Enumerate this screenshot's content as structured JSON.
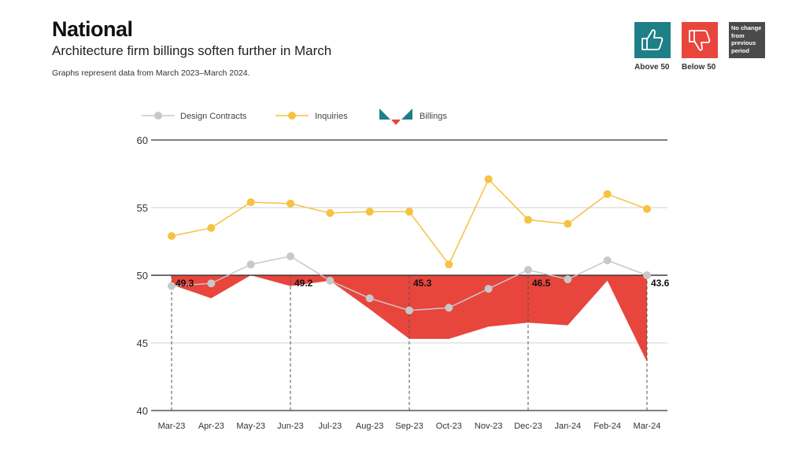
{
  "header": {
    "title": "National",
    "subtitle": "Architecture firm billings soften further in March",
    "note": "Graphs represent data from March 2023–March 2024."
  },
  "key": {
    "above": {
      "label": "Above 50",
      "icon": "thumbs-up-icon",
      "color": "#1f7f86"
    },
    "below": {
      "label": "Below 50",
      "icon": "thumbs-down-icon",
      "color": "#e8453c"
    },
    "nochange": {
      "label": "No change from previous period",
      "color": "#4a4a4a"
    }
  },
  "chart_data": {
    "type": "line",
    "categories": [
      "Mar-23",
      "Apr-23",
      "May-23",
      "Jun-23",
      "Jul-23",
      "Aug-23",
      "Sep-23",
      "Oct-23",
      "Nov-23",
      "Dec-23",
      "Jan-24",
      "Feb-24",
      "Mar-24"
    ],
    "ylim": [
      40,
      60
    ],
    "yticks": [
      40,
      45,
      50,
      55,
      60
    ],
    "baseline": 50,
    "grid": true,
    "legend_placement": "top",
    "series": [
      {
        "name": "Design Contracts",
        "color": "#c8c8c8",
        "values": [
          49.2,
          49.4,
          50.8,
          51.4,
          49.6,
          48.3,
          47.4,
          47.6,
          49.0,
          50.4,
          49.7,
          51.1,
          50.0
        ]
      },
      {
        "name": "Inquiries",
        "color": "#f5c242",
        "values": [
          52.9,
          53.5,
          55.4,
          55.3,
          54.6,
          54.7,
          54.7,
          50.8,
          57.1,
          54.1,
          53.8,
          56.0,
          54.9
        ]
      },
      {
        "name": "Billings",
        "color": "#e8453c",
        "type": "area-from-50",
        "values": [
          49.3,
          48.3,
          50.0,
          49.2,
          49.6,
          47.5,
          45.3,
          45.3,
          46.2,
          46.5,
          46.3,
          49.6,
          43.6
        ]
      }
    ],
    "labels": [
      {
        "category": "Mar-23",
        "text": "49.3"
      },
      {
        "category": "Jun-23",
        "text": "49.2"
      },
      {
        "category": "Sep-23",
        "text": "45.3"
      },
      {
        "category": "Dec-23",
        "text": "46.5"
      },
      {
        "category": "Mar-24",
        "text": "43.6"
      }
    ]
  }
}
